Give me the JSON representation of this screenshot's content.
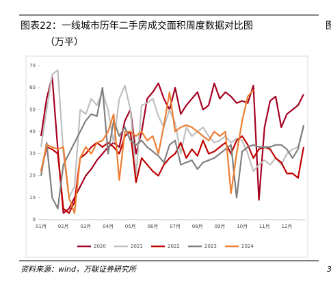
{
  "header": {
    "title": "图表22：一线城市历年二手房成交面积周度数据对比图",
    "unit": "（万平）",
    "side_fragment": "图"
  },
  "chart_data": {
    "type": "line",
    "categories": [
      "01月",
      null,
      null,
      null,
      "02月",
      null,
      null,
      null,
      "03月",
      null,
      null,
      null,
      "04月",
      null,
      null,
      null,
      "05月",
      null,
      null,
      null,
      "06月",
      null,
      null,
      null,
      "07月",
      null,
      null,
      null,
      "08月",
      null,
      null,
      null,
      "09月",
      null,
      null,
      null,
      "10月",
      null,
      null,
      null,
      "11月",
      null,
      null,
      null,
      "12月",
      null,
      null,
      null
    ],
    "ylim": [
      0,
      70
    ],
    "yticks": [
      0,
      10,
      20,
      30,
      40,
      50,
      60,
      70
    ],
    "grid": false,
    "legend": "bottom",
    "series": [
      {
        "name": "2020",
        "color": "#a50021",
        "values": [
          38,
          55,
          65,
          32,
          3,
          5,
          10,
          15,
          20,
          23,
          27,
          30,
          33,
          35,
          33,
          45,
          50,
          30,
          40,
          55,
          58,
          62,
          55,
          50,
          60,
          48,
          52,
          55,
          58,
          50,
          52,
          62,
          55,
          58,
          56,
          53,
          54,
          53,
          61,
          9,
          42,
          54,
          56,
          42,
          48,
          50,
          52,
          57
        ]
      },
      {
        "name": "2021",
        "color": "#bfbfbf",
        "values": [
          33,
          50,
          66,
          68,
          30,
          10,
          15,
          50,
          48,
          55,
          52,
          58,
          50,
          35,
          55,
          61,
          50,
          20,
          52,
          53,
          55,
          47,
          42,
          50,
          44,
          30,
          42,
          38,
          40,
          42,
          38,
          35,
          36,
          38,
          35,
          37,
          36,
          30,
          22,
          25,
          27,
          25,
          28,
          25,
          30,
          32,
          33,
          42
        ]
      },
      {
        "name": "2022",
        "color": "#c00000",
        "values": [
          22,
          33,
          32,
          30,
          5,
          3,
          8,
          28,
          30,
          33,
          35,
          33,
          35,
          33,
          30,
          38,
          40,
          17,
          28,
          25,
          22,
          20,
          25,
          28,
          30,
          35,
          28,
          32,
          29,
          36,
          30,
          31,
          33,
          35,
          30,
          36,
          38,
          34,
          28,
          32,
          33,
          32,
          28,
          26,
          21,
          21,
          19,
          33
        ]
      },
      {
        "name": "2023",
        "color": "#7f7f7f",
        "values": [
          20,
          35,
          10,
          5,
          25,
          30,
          35,
          40,
          45,
          48,
          47,
          60,
          30,
          45,
          38,
          42,
          36,
          34,
          36,
          33,
          31,
          29,
          26,
          34,
          36,
          25,
          26,
          27,
          23,
          26,
          27,
          28,
          30,
          32,
          34,
          10,
          31,
          33,
          34,
          33,
          33,
          33,
          34,
          34,
          32,
          28,
          32,
          43
        ]
      },
      {
        "name": "2024",
        "color": "#ed7d31",
        "values": [
          22,
          34,
          33,
          32,
          33,
          10,
          3,
          28,
          33,
          30,
          35,
          36,
          40,
          48,
          18,
          40,
          40,
          38,
          40,
          36,
          38,
          30,
          43,
          58,
          40,
          42,
          43,
          42,
          40,
          38,
          36,
          40,
          38,
          40,
          12,
          30,
          45,
          56,
          59,
          null,
          null,
          null,
          null,
          null,
          null,
          null,
          null,
          null
        ]
      }
    ]
  },
  "footer": {
    "source": "资料来源：wind，万联证券研究所",
    "page_fragment": "3"
  }
}
